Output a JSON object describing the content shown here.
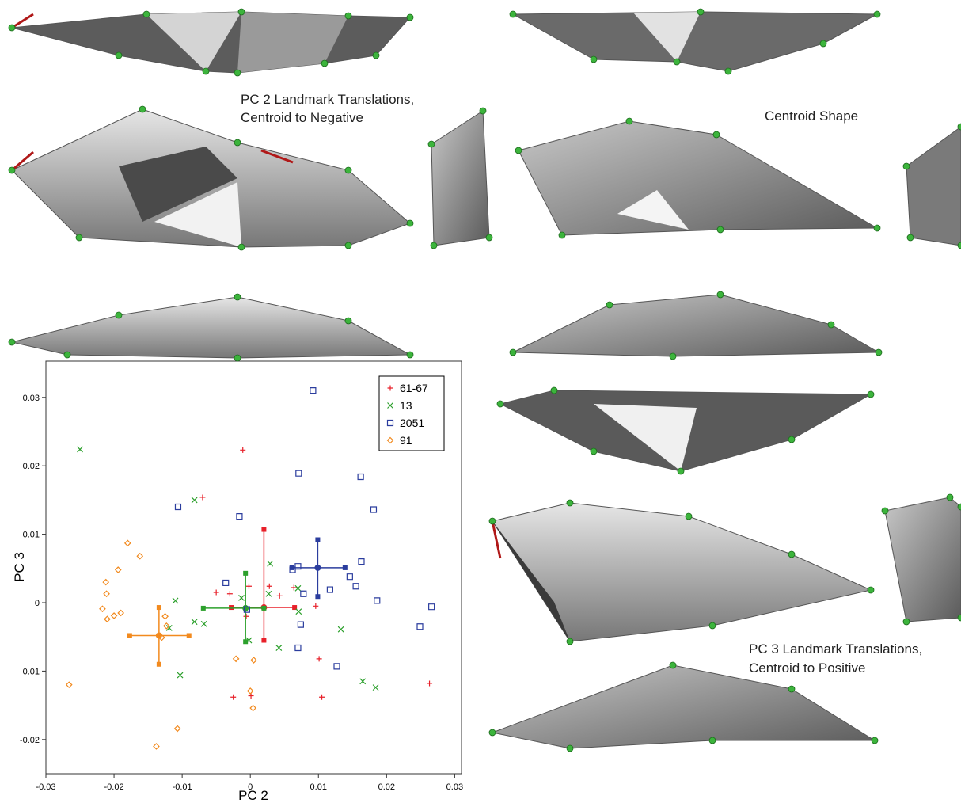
{
  "annotations": {
    "pc2_negative": [
      "PC 2 Landmark Translations,",
      "Centroid to Negative"
    ],
    "centroid": "Centroid Shape",
    "pc3_positive": [
      "PC 3 Landmark Translations,",
      "Centroid to Positive"
    ]
  },
  "chart_data": {
    "type": "scatter",
    "x_label": "PC 2",
    "y_label": "PC 3",
    "xlim": [
      -0.03,
      0.031
    ],
    "ylim": [
      -0.025,
      0.0353
    ],
    "xticks": [
      -0.03,
      -0.02,
      -0.01,
      0,
      0.01,
      0.02,
      0.03
    ],
    "yticks": [
      -0.02,
      -0.01,
      0,
      0.01,
      0.02,
      0.03
    ],
    "legend": "top-right",
    "series": [
      {
        "name": "61-67",
        "color": "#e8202a",
        "marker": "plus",
        "x": [
          -0.007,
          -0.0011,
          -0.005,
          -0.003,
          -0.0002,
          0.0028,
          0.0064,
          0.0043,
          0.0101,
          -0.0025,
          0.0001,
          0.0105,
          0.0263,
          -0.0006,
          0.0096
        ],
        "y": [
          0.0154,
          0.0223,
          0.0015,
          0.0013,
          0.0024,
          0.0024,
          0.0022,
          0.001,
          -0.0082,
          -0.0138,
          -0.0136,
          -0.0138,
          -0.0118,
          -0.002,
          -0.0005
        ],
        "mean": {
          "x": 0.002,
          "y": -0.0007,
          "xrange": [
            -0.0028,
            0.0065
          ],
          "yrange": [
            -0.0055,
            0.0107
          ]
        }
      },
      {
        "name": "13",
        "color": "#2ca02c",
        "marker": "cross",
        "x": [
          -0.025,
          -0.0082,
          -0.011,
          -0.0119,
          -0.0103,
          -0.0082,
          -0.0068,
          -0.0013,
          -0.0002,
          0.0027,
          0.0029,
          0.0042,
          0.0071,
          0.0133,
          0.0165,
          0.0184,
          0.007
        ],
        "y": [
          0.0224,
          0.015,
          0.0003,
          -0.0037,
          -0.0106,
          -0.0028,
          -0.0031,
          0.0007,
          -0.0055,
          0.0013,
          0.0057,
          -0.0066,
          -0.0013,
          -0.0039,
          -0.0115,
          -0.0124,
          0.0021
        ],
        "mean": {
          "x": -0.0007,
          "y": -0.0008,
          "xrange": [
            -0.0069,
            0.002
          ],
          "yrange": [
            -0.0057,
            0.0043
          ]
        }
      },
      {
        "name": "2051",
        "color": "#2b3d9e",
        "marker": "square",
        "x": [
          0.0092,
          -0.0106,
          -0.0016,
          0.0071,
          0.0162,
          0.0181,
          0.0163,
          0.0062,
          0.007,
          0.0155,
          0.0146,
          0.0117,
          0.0078,
          -0.0036,
          -0.0005,
          0.0074,
          0.007,
          0.0127,
          0.0186,
          0.0249,
          0.0266
        ],
        "y": [
          0.031,
          0.014,
          0.0126,
          0.0189,
          0.0184,
          0.0136,
          0.006,
          0.0048,
          0.0053,
          0.0024,
          0.0038,
          0.0019,
          0.0013,
          0.0029,
          -0.001,
          -0.0032,
          -0.0066,
          -0.0093,
          0.0003,
          -0.0035,
          -0.0006
        ],
        "mean": {
          "x": 0.0099,
          "y": 0.0051,
          "xrange": [
            0.0061,
            0.0139
          ],
          "yrange": [
            0.0009,
            0.0092
          ]
        }
      },
      {
        "name": "91",
        "color": "#f28a1e",
        "marker": "diamond",
        "x": [
          -0.018,
          -0.0162,
          -0.0194,
          -0.0212,
          -0.0211,
          -0.0217,
          -0.021,
          -0.02,
          -0.019,
          -0.0125,
          -0.0123,
          -0.013,
          -0.0266,
          -0.0107,
          -0.0138,
          -0.0021,
          0.0005,
          0,
          0.0004
        ],
        "y": [
          0.0087,
          0.0068,
          0.0048,
          0.003,
          0.0013,
          -0.0009,
          -0.0024,
          -0.0019,
          -0.0015,
          -0.002,
          -0.0034,
          -0.0051,
          -0.012,
          -0.0184,
          -0.021,
          -0.0082,
          -0.0084,
          -0.0129,
          -0.0154
        ],
        "mean": {
          "x": -0.0134,
          "y": -0.0048,
          "xrange": [
            -0.0177,
            -0.009
          ],
          "yrange": [
            -0.009,
            -0.0007
          ]
        }
      }
    ]
  }
}
